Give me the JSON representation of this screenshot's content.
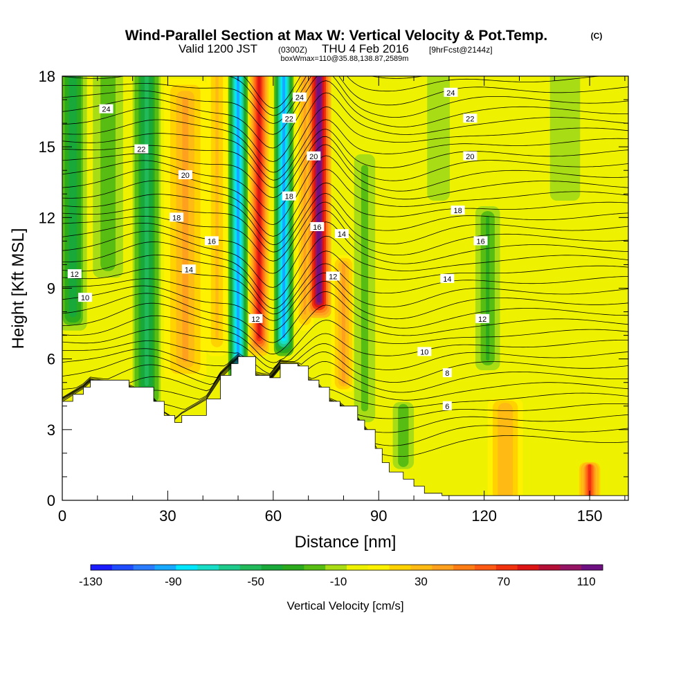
{
  "title": {
    "main": "Wind-Parallel Section at Max W: Vertical Velocity & Pot.Temp.",
    "units": "(C)",
    "valid_a": "Valid 1200 JST",
    "valid_b": "(0300Z)",
    "valid_c": "THU 4 Feb 2016",
    "valid_d": "[9hrFcst@2144z]",
    "box": "boxWmax=110@35.88,138.87,2589m"
  },
  "chart_data": {
    "type": "heatmap",
    "xlabel": "Distance [nm]",
    "ylabel": "Height [Kft MSL]",
    "xlim": [
      0,
      161
    ],
    "ylim": [
      0,
      18
    ],
    "x_ticks": [
      "0",
      "30",
      "60",
      "90",
      "120",
      "150"
    ],
    "x_tick_values": [
      0,
      30,
      60,
      90,
      120,
      150
    ],
    "y_ticks": [
      "0",
      "3",
      "6",
      "9",
      "12",
      "15",
      "18"
    ],
    "y_tick_values": [
      0,
      3,
      6,
      9,
      12,
      15,
      18
    ],
    "colorbar": {
      "title": "Vertical Velocity [cm/s]",
      "labels": [
        "-130",
        "-90",
        "-50",
        "-10",
        "30",
        "70",
        "110"
      ],
      "label_values": [
        -130,
        -90,
        -50,
        -10,
        30,
        70,
        110
      ],
      "min": -130,
      "max": 118,
      "colors": [
        "#1b1bff",
        "#1f4cff",
        "#2a7bff",
        "#17a8ff",
        "#00e6ff",
        "#17dcc6",
        "#1ec98c",
        "#22b95a",
        "#19a83a",
        "#2aaa1c",
        "#58bd12",
        "#a8dc14",
        "#eef200",
        "#fff200",
        "#ffd200",
        "#ffba14",
        "#ffa01e",
        "#ff7d14",
        "#ff5a14",
        "#f0320f",
        "#dc1414",
        "#b40f37",
        "#961464",
        "#6e0f82"
      ]
    },
    "vertical_velocity_bands": [
      {
        "x": 3,
        "w": 4,
        "v": -45,
        "z0": 8,
        "z1": 18
      },
      {
        "x": 13,
        "w": 5,
        "v": -25,
        "z0": 10,
        "z1": 18
      },
      {
        "x": 24,
        "w": 4,
        "v": -50,
        "z0": 5,
        "z1": 18
      },
      {
        "x": 35,
        "w": 6,
        "v": 40,
        "z0": 6,
        "z1": 17
      },
      {
        "x": 44,
        "w": 3,
        "v": 25,
        "z0": 7,
        "z1": 18
      },
      {
        "x": 50,
        "w": 2.8,
        "v": -95,
        "z0": 6,
        "z1": 18
      },
      {
        "x": 56,
        "w": 2.8,
        "v": 85,
        "z0": 7,
        "z1": 18
      },
      {
        "x": 63,
        "w": 2.8,
        "v": -95,
        "z0": 7,
        "z1": 18
      },
      {
        "x": 69,
        "w": 2.5,
        "v": 40,
        "z0": 8,
        "z1": 18
      },
      {
        "x": 73,
        "w": 3.5,
        "v": 115,
        "z0": 8.5,
        "z1": 18
      },
      {
        "x": 80,
        "w": 3.5,
        "v": 40,
        "z0": 5,
        "z1": 10
      },
      {
        "x": 86,
        "w": 3.5,
        "v": -20,
        "z0": 4,
        "z1": 14
      },
      {
        "x": 97,
        "w": 3.5,
        "v": -25,
        "z0": 1.5,
        "z1": 4
      },
      {
        "x": 107,
        "w": 4.5,
        "v": -15,
        "z0": 13,
        "z1": 18
      },
      {
        "x": 121,
        "w": 3.5,
        "v": -30,
        "z0": 6,
        "z1": 12
      },
      {
        "x": 126,
        "w": 5,
        "v": 35,
        "z0": 0,
        "z1": 4
      },
      {
        "x": 143,
        "w": 6,
        "v": -15,
        "z0": 13,
        "z1": 18
      },
      {
        "x": 150,
        "w": 3,
        "v": 70,
        "z0": 0,
        "z1": 1.5
      }
    ],
    "terrain_kft": [
      [
        0,
        4.2
      ],
      [
        3,
        4.5
      ],
      [
        6,
        4.8
      ],
      [
        8,
        5.1
      ],
      [
        19,
        4.8
      ],
      [
        26,
        4.2
      ],
      [
        29,
        3.6
      ],
      [
        32,
        3.3
      ],
      [
        34,
        3.6
      ],
      [
        41,
        4.3
      ],
      [
        45,
        5.3
      ],
      [
        48,
        5.8
      ],
      [
        50,
        6.1
      ],
      [
        55,
        5.3
      ],
      [
        59,
        5.2
      ],
      [
        62,
        5.8
      ],
      [
        67,
        5.7
      ],
      [
        70,
        5.1
      ],
      [
        73,
        4.8
      ],
      [
        76,
        4.2
      ],
      [
        79,
        4.0
      ],
      [
        84,
        3.4
      ],
      [
        86,
        3.0
      ],
      [
        89,
        2.2
      ],
      [
        91,
        1.6
      ],
      [
        93,
        1.2
      ],
      [
        97,
        0.9
      ],
      [
        100,
        0.6
      ],
      [
        103,
        0.3
      ],
      [
        108,
        0.2
      ],
      [
        114,
        0.2
      ],
      [
        161,
        0.2
      ]
    ],
    "theta_labels": [
      {
        "text": "24",
        "x": 12.5,
        "z": 16.6
      },
      {
        "text": "22",
        "x": 22.5,
        "z": 14.9
      },
      {
        "text": "20",
        "x": 35,
        "z": 13.8
      },
      {
        "text": "18",
        "x": 32.5,
        "z": 12.0
      },
      {
        "text": "16",
        "x": 42.5,
        "z": 11.0
      },
      {
        "text": "14",
        "x": 36,
        "z": 9.8
      },
      {
        "text": "12",
        "x": 3.5,
        "z": 9.6
      },
      {
        "text": "10",
        "x": 6.5,
        "z": 8.6
      },
      {
        "text": "12",
        "x": 55,
        "z": 7.7
      },
      {
        "text": "24",
        "x": 67.5,
        "z": 17.1
      },
      {
        "text": "22",
        "x": 64.5,
        "z": 16.2
      },
      {
        "text": "20",
        "x": 71.5,
        "z": 14.6
      },
      {
        "text": "18",
        "x": 64.5,
        "z": 12.9
      },
      {
        "text": "16",
        "x": 72.5,
        "z": 11.6
      },
      {
        "text": "14",
        "x": 79.5,
        "z": 11.3
      },
      {
        "text": "12",
        "x": 77,
        "z": 9.5
      },
      {
        "text": "24",
        "x": 110.5,
        "z": 17.3
      },
      {
        "text": "22",
        "x": 116,
        "z": 16.2
      },
      {
        "text": "20",
        "x": 116,
        "z": 14.6
      },
      {
        "text": "18",
        "x": 112.5,
        "z": 12.3
      },
      {
        "text": "16",
        "x": 119,
        "z": 11.0
      },
      {
        "text": "14",
        "x": 109.5,
        "z": 9.4
      },
      {
        "text": "12",
        "x": 119.5,
        "z": 7.7
      },
      {
        "text": "10",
        "x": 103,
        "z": 6.3
      },
      {
        "text": "8",
        "x": 109.5,
        "z": 5.4
      },
      {
        "text": "6",
        "x": 109.5,
        "z": 4.0
      }
    ]
  }
}
